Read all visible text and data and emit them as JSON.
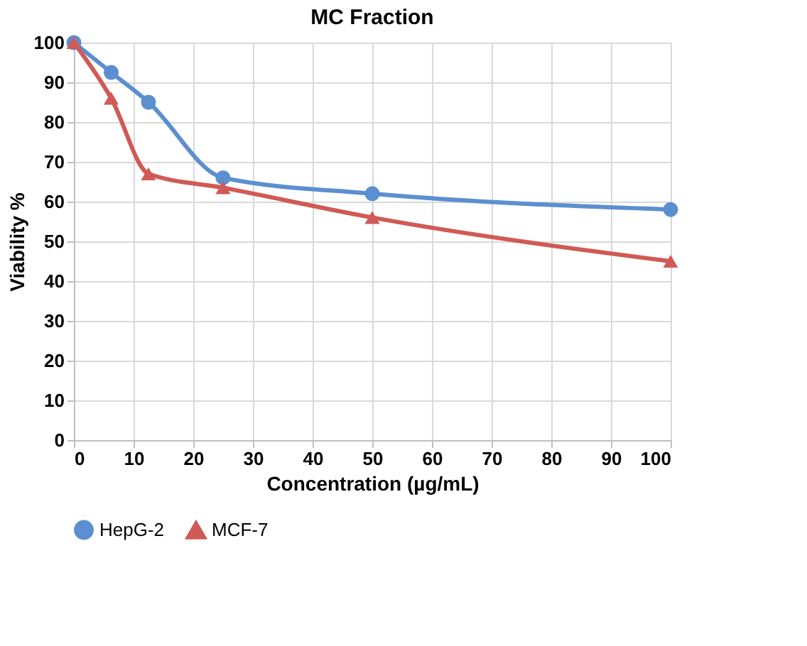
{
  "chart_data": {
    "type": "line",
    "title": "MC Fraction",
    "xlabel": "Concentration (µg/mL)",
    "ylabel": "Viability %",
    "x": [
      0,
      6.25,
      12.5,
      25,
      50,
      100
    ],
    "series": [
      {
        "name": "HepG-2",
        "color": "#5b8fd0",
        "marker": "circle",
        "values": [
          100,
          92.5,
          85,
          66,
          62,
          58
        ]
      },
      {
        "name": "MCF-7",
        "color": "#d05a55",
        "marker": "triangle",
        "values": [
          100,
          86,
          67,
          63.5,
          56,
          45
        ]
      }
    ],
    "xlim": [
      0,
      100
    ],
    "xticks": [
      0,
      10,
      20,
      30,
      40,
      50,
      60,
      70,
      80,
      90,
      100
    ],
    "ylim": [
      0,
      100
    ],
    "yticks": [
      0,
      10,
      20,
      30,
      40,
      50,
      60,
      70,
      80,
      90,
      100
    ],
    "grid": true,
    "legend": "bottom",
    "line_style": "solid"
  }
}
